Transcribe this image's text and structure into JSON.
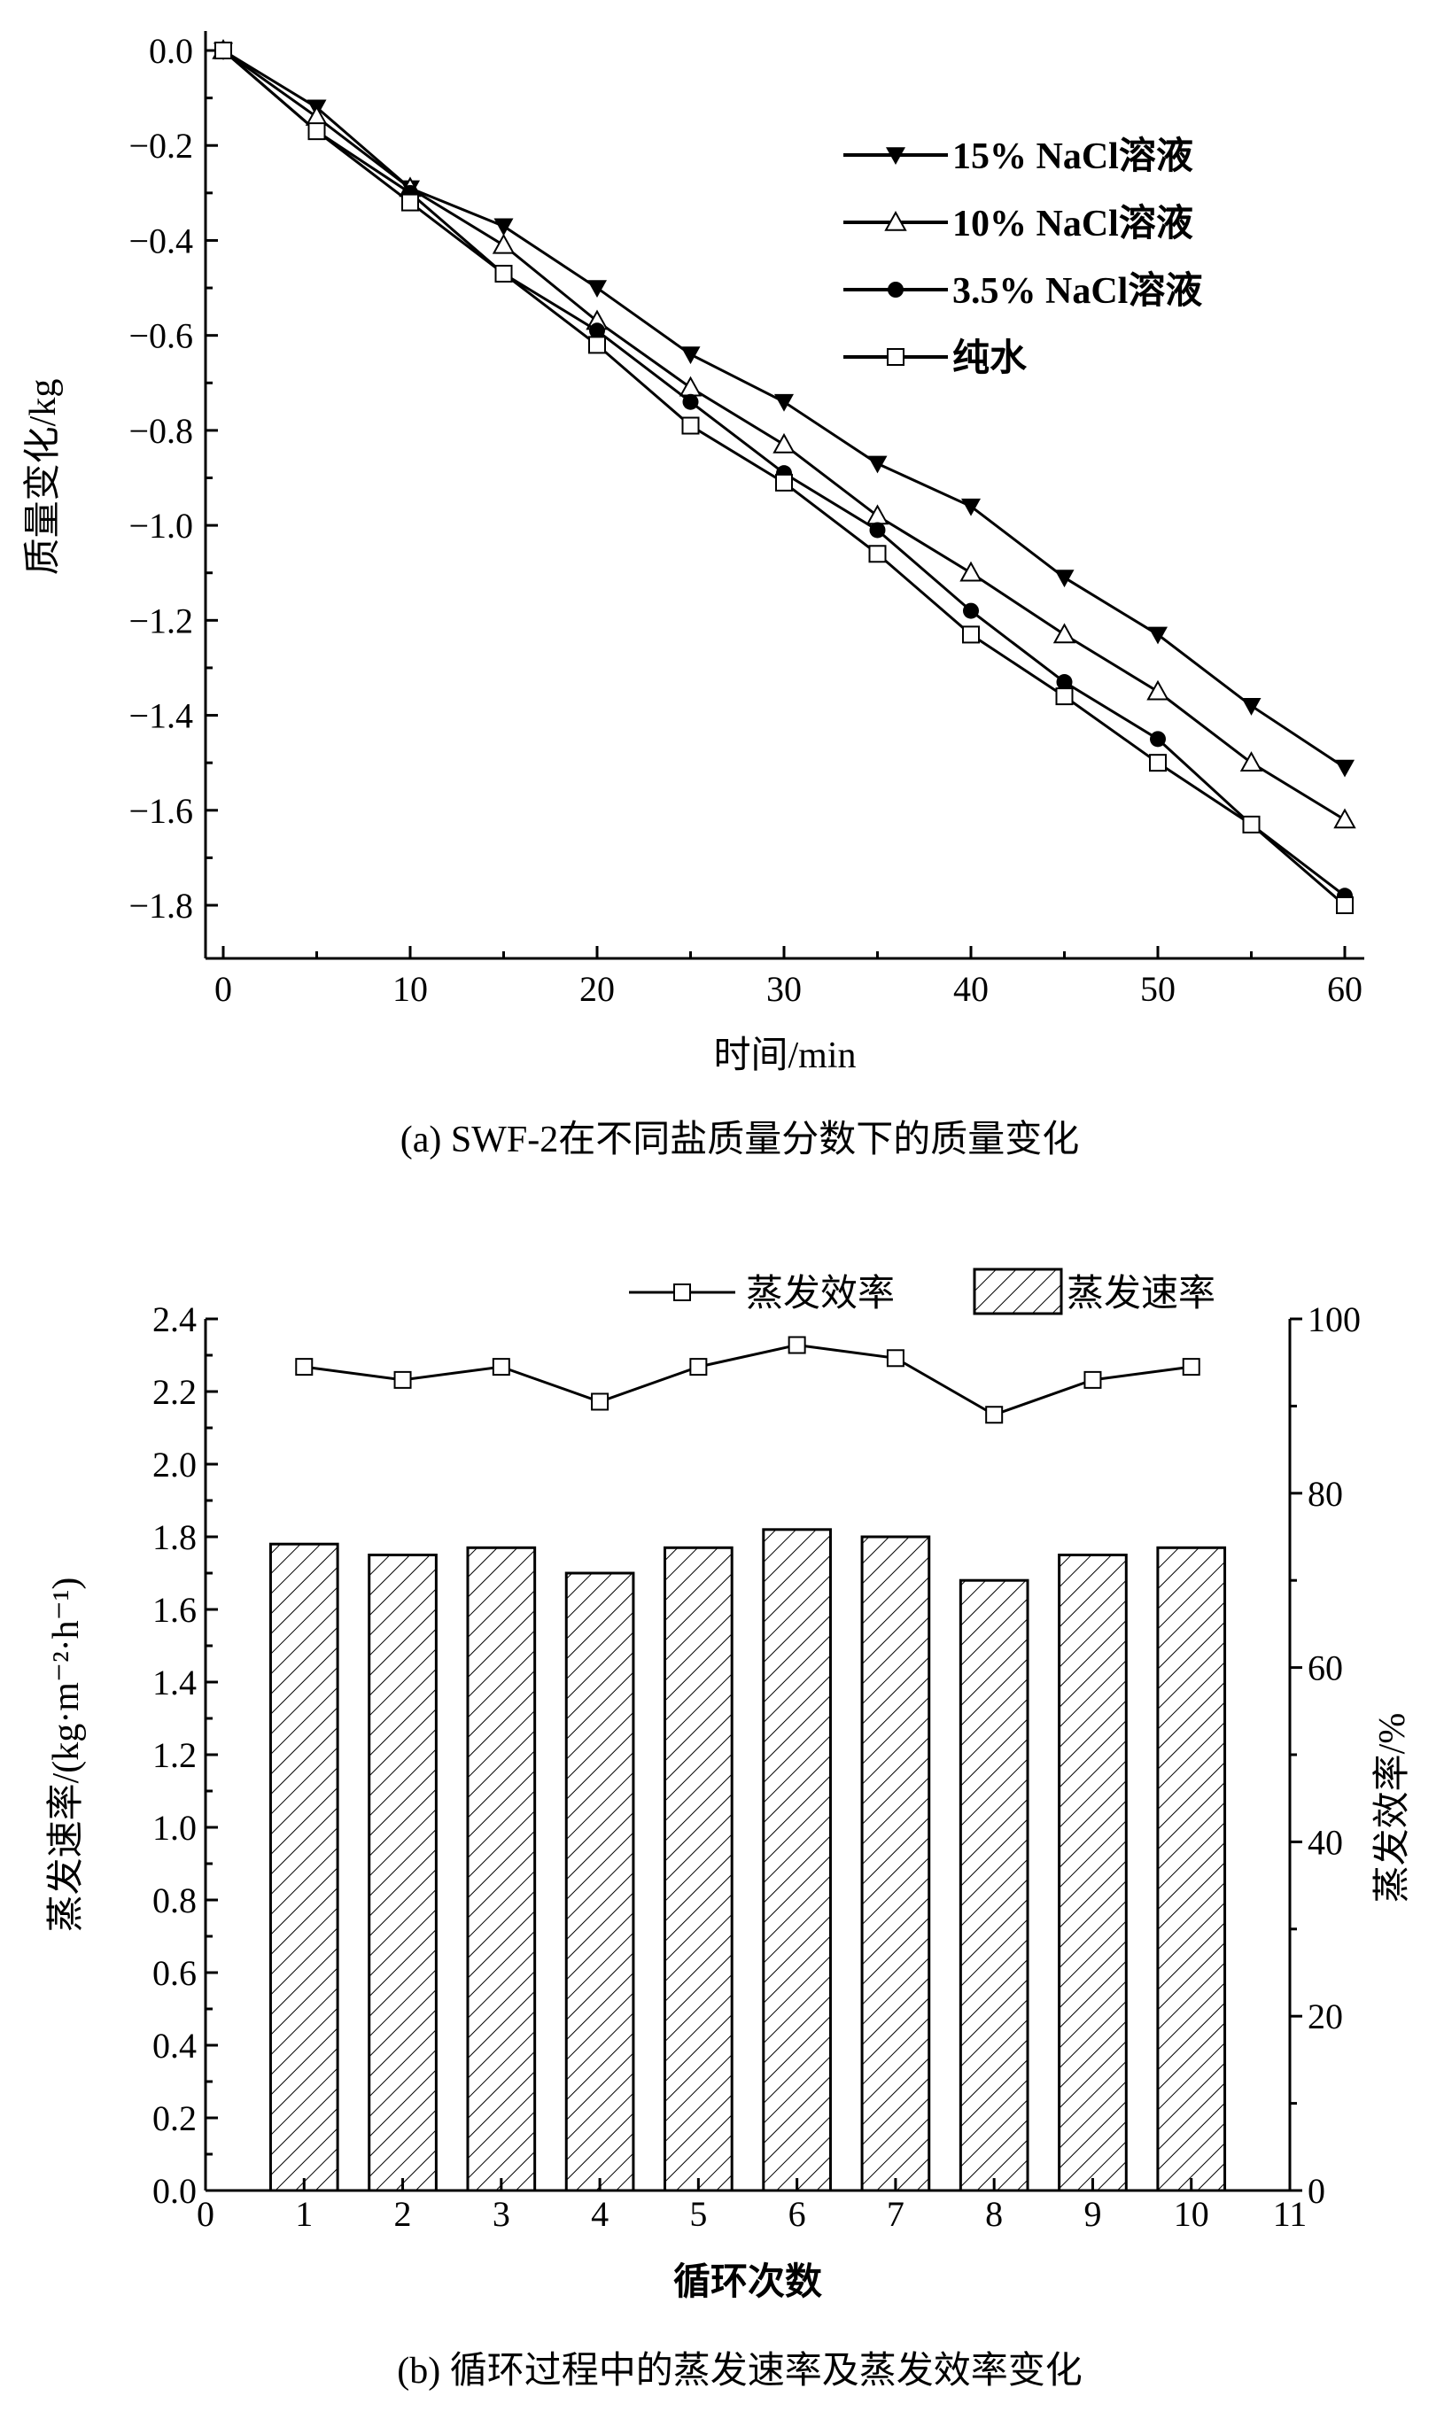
{
  "chart_data": [
    {
      "type": "line",
      "title": "(a) SWF-2在不同盐质量分数下的质量变化",
      "xlabel": "时间/min",
      "ylabel": "质量变化/kg",
      "xlim": [
        0,
        60
      ],
      "ylim": [
        -1.8,
        0.0
      ],
      "xticks": [
        "0",
        "10",
        "20",
        "30",
        "40",
        "50",
        "60"
      ],
      "yticks": [
        "0.0",
        "-0.2",
        "-0.4",
        "-0.6",
        "-0.8",
        "-1.0",
        "-1.2",
        "-1.4",
        "-1.6",
        "-1.8"
      ],
      "legend_position": "top-right",
      "x": [
        0,
        5,
        10,
        15,
        20,
        25,
        30,
        35,
        40,
        45,
        50,
        55,
        60
      ],
      "series": [
        {
          "name": "15% NaCl溶液",
          "marker": "triangle-down-filled",
          "values": [
            0,
            -0.12,
            -0.29,
            -0.37,
            -0.5,
            -0.64,
            -0.74,
            -0.87,
            -0.96,
            -1.11,
            -1.23,
            -1.38,
            -1.51
          ]
        },
        {
          "name": "10% NaCl溶液",
          "marker": "triangle-up-open",
          "values": [
            0,
            -0.14,
            -0.29,
            -0.41,
            -0.57,
            -0.71,
            -0.83,
            -0.98,
            -1.1,
            -1.23,
            -1.35,
            -1.5,
            -1.62
          ]
        },
        {
          "name": "3.5% NaCl溶液",
          "marker": "circle-filled",
          "values": [
            0,
            -0.17,
            -0.3,
            -0.47,
            -0.59,
            -0.74,
            -0.89,
            -1.01,
            -1.18,
            -1.33,
            -1.45,
            -1.63,
            -1.78
          ]
        },
        {
          "name": "纯水",
          "marker": "square-open",
          "values": [
            0,
            -0.17,
            -0.32,
            -0.47,
            -0.62,
            -0.79,
            -0.91,
            -1.06,
            -1.23,
            -1.36,
            -1.5,
            -1.63,
            -1.8
          ]
        }
      ]
    },
    {
      "type": "bar",
      "title": "(b) 循环过程中的蒸发速率及蒸发效率变化",
      "xlabel": "循环次数",
      "ylabel": "蒸发速率/(kg·m⁻²·h⁻¹)",
      "ylabel_right": "蒸发效率/%",
      "xlim": [
        0,
        11
      ],
      "ylim": [
        0,
        2.4
      ],
      "ylim_right": [
        0,
        100
      ],
      "xticks": [
        "0",
        "1",
        "2",
        "3",
        "4",
        "5",
        "6",
        "7",
        "8",
        "9",
        "10",
        "11"
      ],
      "yticks": [
        "0.0",
        "0.2",
        "0.4",
        "0.6",
        "0.8",
        "1.0",
        "1.2",
        "1.4",
        "1.6",
        "1.8",
        "2.0",
        "2.2",
        "2.4"
      ],
      "yticks_right": [
        "0",
        "20",
        "40",
        "60",
        "80",
        "100"
      ],
      "legend_position": "top",
      "categories": [
        1,
        2,
        3,
        4,
        5,
        6,
        7,
        8,
        9,
        10
      ],
      "series": [
        {
          "name": "蒸发速率",
          "kind": "bar-hatched",
          "axis": "left",
          "values": [
            1.78,
            1.75,
            1.77,
            1.7,
            1.77,
            1.82,
            1.8,
            1.68,
            1.75,
            1.77
          ]
        },
        {
          "name": "蒸发效率",
          "kind": "line-square",
          "axis": "right",
          "values": [
            94.5,
            93,
            94.5,
            90.5,
            94.5,
            97,
            95.5,
            89,
            93,
            94.5
          ]
        }
      ]
    }
  ]
}
